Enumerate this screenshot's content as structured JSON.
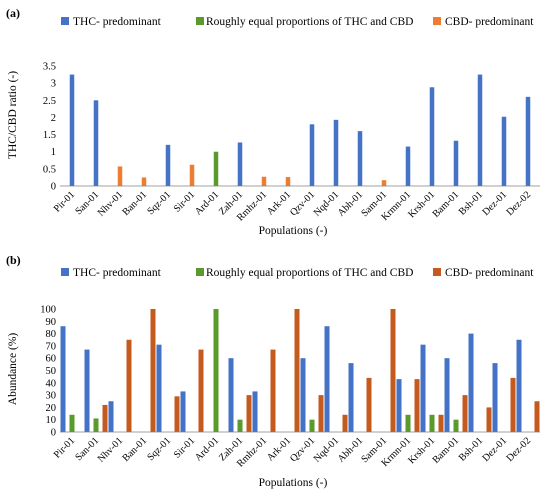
{
  "chart_data": [
    {
      "panel_label": "(a)",
      "type": "bar",
      "categories": [
        "Pir-01",
        "San-01",
        "Nhv-01",
        "Ban-01",
        "Sqz-01",
        "Sir-01",
        "Ard-01",
        "Zah-01",
        "Rmhz-01",
        "Ark-01",
        "Qzv-01",
        "Nqd-01",
        "Abh-01",
        "Sam-01",
        "Krmn-01",
        "Krsh-01",
        "Bam-01",
        "Bsh-01",
        "Dez-01",
        "Dez-02"
      ],
      "series": [
        {
          "name": "THC- predominant",
          "color": "#4472C4",
          "values": [
            3.25,
            2.5,
            null,
            null,
            1.2,
            null,
            null,
            1.27,
            null,
            null,
            1.8,
            1.93,
            1.6,
            null,
            1.15,
            2.88,
            1.32,
            3.25,
            2.02,
            2.6
          ]
        },
        {
          "name": "Roughly equal proportions of THC and CBD",
          "color": "#5A9A2C",
          "values": [
            null,
            null,
            null,
            null,
            null,
            null,
            1.0,
            null,
            null,
            null,
            null,
            null,
            null,
            null,
            null,
            null,
            null,
            null,
            null,
            null
          ]
        },
        {
          "name": "CBD- predominant",
          "color": "#ED7D31",
          "values": [
            null,
            null,
            0.57,
            0.25,
            null,
            0.62,
            null,
            null,
            0.27,
            0.26,
            null,
            null,
            null,
            0.17,
            null,
            null,
            null,
            null,
            null,
            null
          ]
        }
      ],
      "xlabel": "Populations (-)",
      "ylabel": "THC/CBD ratio (-)",
      "ylim": [
        0,
        3.5
      ],
      "yticks": [
        "0",
        "0.5",
        "1",
        "1.5",
        "2",
        "2.5",
        "3",
        "3.5"
      ],
      "grid": false,
      "legend": "top"
    },
    {
      "panel_label": "(b)",
      "type": "bar",
      "categories": [
        "Pir-01",
        "San-01",
        "Nhv-01",
        "Ban-01",
        "Sqz-01",
        "Sir-01",
        "Ard-01",
        "Zah-01",
        "Rmhz-01",
        "Ark-01",
        "Qzv-01",
        "Nqd-01",
        "Abh-01",
        "Sam-01",
        "Krmn-01",
        "Krsh-01",
        "Bam-01",
        "Bsh-01",
        "Dez-01",
        "Dez-02"
      ],
      "series": [
        {
          "name": "THC- predominant",
          "color": "#4472C4",
          "values": [
            86,
            67,
            25,
            0,
            71,
            33,
            0,
            60,
            33,
            0,
            60,
            86,
            56,
            0,
            43,
            71,
            60,
            80,
            56,
            75
          ]
        },
        {
          "name": "Roughly equal proportions of THC and CBD",
          "color": "#5A9A2C",
          "values": [
            14,
            11,
            0,
            0,
            0,
            0,
            100,
            10,
            0,
            0,
            10,
            0,
            0,
            0,
            14,
            14,
            10,
            0,
            0,
            0
          ]
        },
        {
          "name": "CBD- predominant",
          "color": "#C55A1F",
          "values": [
            0,
            22,
            75,
            100,
            29,
            67,
            0,
            30,
            67,
            100,
            30,
            14,
            44,
            100,
            43,
            14,
            30,
            20,
            44,
            25
          ]
        }
      ],
      "xlabel": "Populations (-)",
      "ylabel": "Abundance (%)",
      "ylim": [
        0,
        100
      ],
      "yticks": [
        "0",
        "10",
        "20",
        "30",
        "40",
        "50",
        "60",
        "70",
        "80",
        "90",
        "100"
      ],
      "grid": false,
      "legend": "top"
    }
  ]
}
